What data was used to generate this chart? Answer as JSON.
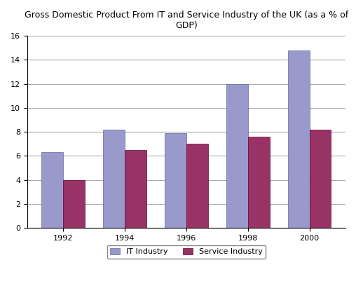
{
  "title": "Gross Domestic Product From IT and Service Industry of the UK (as a % of\nGDP)",
  "years": [
    "1992",
    "1994",
    "1996",
    "1998",
    "2000"
  ],
  "it_values": [
    6.3,
    8.2,
    7.9,
    12.0,
    14.8
  ],
  "service_values": [
    4.0,
    6.5,
    7.0,
    7.6,
    8.2
  ],
  "it_color": "#9999cc",
  "service_color": "#993366",
  "ylim": [
    0,
    16
  ],
  "yticks": [
    0,
    2,
    4,
    6,
    8,
    10,
    12,
    14,
    16
  ],
  "legend_labels": [
    "IT Industry",
    "Service Industry"
  ],
  "bar_width": 0.35,
  "background_color": "#ffffff",
  "grid_color": "#aaaaaa",
  "title_fontsize": 9,
  "legend_fontsize": 8,
  "tick_fontsize": 8
}
